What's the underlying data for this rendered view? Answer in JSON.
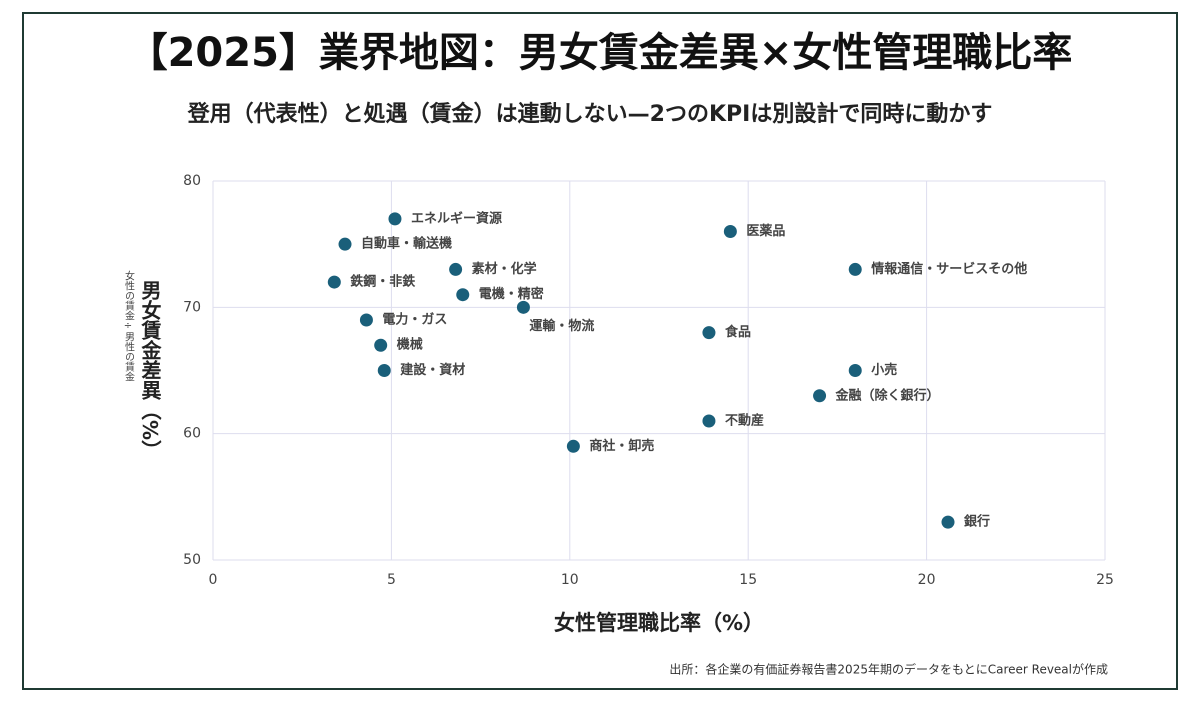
{
  "chart_data": {
    "type": "scatter",
    "title": "【2025】業界地図：男女賃金差異×女性管理職比率",
    "subtitle": "登用（代表性）と処遇（賃金）は連動しない—2つのKPIは別設計で同時に動かす",
    "x_label": "女性管理職比率（%）",
    "y_label": "男女賃金差異（%）",
    "y_sublabel": "女性の賃金÷男性の賃金",
    "source": "出所：各企業の有価証券報告書2025年期のデータをもとにCareer Revealが作成",
    "color": "#1a5f7a",
    "grid": true,
    "xlim": [
      0,
      25
    ],
    "xticks": [
      0,
      5,
      10,
      15,
      20,
      25
    ],
    "ylim": [
      50,
      80
    ],
    "yticks": [
      50,
      60,
      70,
      80
    ],
    "labels": [
      "エネルギー資源",
      "自動車・輸送機",
      "鉄鋼・非鉄",
      "素材・化学",
      "電機・精密",
      "運輸・物流",
      "電力・ガス",
      "機械",
      "建設・資材",
      "医薬品",
      "情報通信・サービスその他",
      "食品",
      "小売",
      "金融（除く銀行）",
      "不動産",
      "商社・卸売",
      "銀行"
    ],
    "x": [
      5.1,
      3.7,
      3.4,
      6.8,
      7.0,
      8.7,
      4.3,
      4.7,
      4.8,
      14.5,
      18.0,
      13.9,
      18.0,
      17.0,
      13.9,
      10.1,
      20.6
    ],
    "values": [
      77,
      75,
      72,
      73,
      71,
      70,
      69,
      67,
      65,
      76,
      73,
      68,
      65,
      63,
      61,
      59,
      53
    ]
  }
}
